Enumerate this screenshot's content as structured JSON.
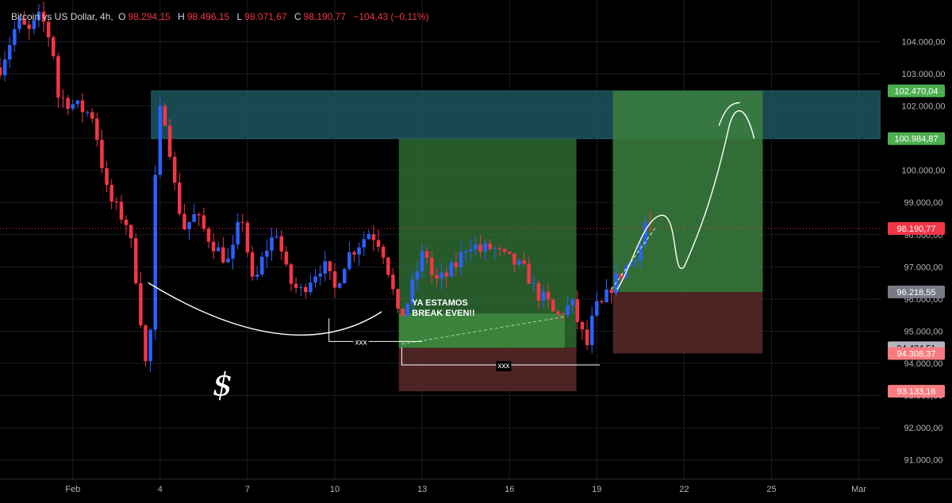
{
  "legend": {
    "symbol": "Bitcoin vs US Dollar, 4h,",
    "o_label": "O",
    "o_value": "98.294,15",
    "h_label": "H",
    "h_value": "98.496,15",
    "l_label": "L",
    "l_value": "98.071,67",
    "c_label": "C",
    "c_value": "98.190,77",
    "change": "−104,43 (−0,11%)"
  },
  "annotations": {
    "note_line1": "YA ESTAMOS",
    "note_line2": "BREAK EVEN!!",
    "xxx_left": "xxx",
    "xxx_right": "xxx",
    "dollar": "$"
  },
  "price_tags": [
    {
      "label": "102.470,04",
      "value": 102470.04,
      "color": "#4caf50"
    },
    {
      "label": "100.984,87",
      "value": 100984.87,
      "color": "#4caf50"
    },
    {
      "label": "98.190,77",
      "value": 98190.77,
      "color": "#f23645"
    },
    {
      "label": "96.218,55",
      "value": 96218.55,
      "color": "#787b86"
    },
    {
      "label": "94.484,51",
      "value": 94484.51,
      "color": "#b2b5be"
    },
    {
      "label": "94.308,37",
      "value": 94308.37,
      "color": "#f77c80"
    },
    {
      "label": "93.133,16",
      "value": 93133.16,
      "color": "#f77c80"
    }
  ],
  "chart_data": {
    "type": "candlestick",
    "title": "Bitcoin vs US Dollar, 4h",
    "ylim": [
      90400,
      104800
    ],
    "y_ticks": [
      {
        "value": 91000,
        "label": "91.000,00"
      },
      {
        "value": 92000,
        "label": "92.000,00"
      },
      {
        "value": 93000,
        "label": "93.000,00"
      },
      {
        "value": 94000,
        "label": "94.000,00"
      },
      {
        "value": 95000,
        "label": "95.000,00"
      },
      {
        "value": 96000,
        "label": "96.000,00"
      },
      {
        "value": 97000,
        "label": "97.000,00"
      },
      {
        "value": 98000,
        "label": "98.000,00"
      },
      {
        "value": 99000,
        "label": "99.000,00"
      },
      {
        "value": 100000,
        "label": "100.000,00"
      },
      {
        "value": 101000,
        "label": "101.000,00"
      },
      {
        "value": 102000,
        "label": "102.000,00"
      },
      {
        "value": 103000,
        "label": "103.000,00"
      },
      {
        "value": 104000,
        "label": "104.000,00"
      }
    ],
    "x_ticks": [
      {
        "day": 0,
        "label": "Feb"
      },
      {
        "day": 3,
        "label": "4"
      },
      {
        "day": 6,
        "label": "7"
      },
      {
        "day": 9,
        "label": "10"
      },
      {
        "day": 12,
        "label": "13"
      },
      {
        "day": 15,
        "label": "16"
      },
      {
        "day": 18,
        "label": "19"
      },
      {
        "day": 21,
        "label": "22"
      },
      {
        "day": 24,
        "label": "25"
      },
      {
        "day": 27,
        "label": "Mar"
      }
    ],
    "x_range_days": [
      -2.5,
      30.2
    ],
    "last_price": 98190.77,
    "colors": {
      "up": "#2962ff",
      "down": "#f23645"
    },
    "grid": true,
    "zones": [
      {
        "name": "supply",
        "d0": 2.7,
        "d1": 33.0,
        "top": 102470,
        "bottom": 100984.87,
        "color": "#1e5560"
      },
      {
        "name": "long1-profit",
        "d0": 11.2,
        "d1": 17.3,
        "top": 100984.87,
        "bottom": 94484.51,
        "color": "#2e6a33"
      },
      {
        "name": "long1-loss",
        "d0": 11.2,
        "d1": 17.3,
        "top": 94484.51,
        "bottom": 93133.16,
        "color": "#5a2a2a"
      },
      {
        "name": "long2-profit",
        "d0": 18.55,
        "d1": 23.7,
        "top": 102470.04,
        "bottom": 96218.55,
        "color": "#3c8040"
      },
      {
        "name": "long2-loss",
        "d0": 18.55,
        "d1": 23.7,
        "top": 96218.55,
        "bottom": 94308.37,
        "color": "#5a2a2a"
      },
      {
        "name": "break-even",
        "d0": 11.2,
        "d1": 16.9,
        "top": 95550,
        "bottom": 94484.51,
        "color": "#3f8a3f"
      }
    ],
    "anchors": [
      [
        -2.5,
        103200
      ],
      [
        -2.2,
        103900
      ],
      [
        -1.9,
        104600
      ],
      [
        -1.5,
        104300
      ],
      [
        -1.1,
        104800
      ],
      [
        -0.7,
        103900
      ],
      [
        -0.5,
        102300
      ],
      [
        -0.1,
        102100
      ],
      [
        0.3,
        101900
      ],
      [
        0.7,
        101700
      ],
      [
        0.9,
        100700
      ],
      [
        1.2,
        99200
      ],
      [
        1.5,
        98800
      ],
      [
        1.9,
        98300
      ],
      [
        2.2,
        96500
      ],
      [
        2.5,
        94000
      ],
      [
        2.7,
        95200
      ],
      [
        2.9,
        101900
      ],
      [
        3.2,
        101600
      ],
      [
        3.5,
        99500
      ],
      [
        3.8,
        98200
      ],
      [
        4.2,
        98600
      ],
      [
        4.6,
        98000
      ],
      [
        5.0,
        97500
      ],
      [
        5.4,
        97100
      ],
      [
        5.8,
        98700
      ],
      [
        6.2,
        96300
      ],
      [
        6.6,
        97500
      ],
      [
        7.0,
        98100
      ],
      [
        7.4,
        96600
      ],
      [
        7.8,
        96200
      ],
      [
        8.2,
        96700
      ],
      [
        8.6,
        97100
      ],
      [
        9.0,
        96300
      ],
      [
        9.4,
        97300
      ],
      [
        9.8,
        97700
      ],
      [
        10.2,
        98100
      ],
      [
        10.6,
        97700
      ],
      [
        10.9,
        96700
      ],
      [
        11.2,
        95300
      ],
      [
        11.5,
        95900
      ],
      [
        11.8,
        96800
      ],
      [
        12.1,
        97600
      ],
      [
        12.4,
        96500
      ],
      [
        12.8,
        96700
      ],
      [
        13.2,
        97100
      ],
      [
        13.6,
        97800
      ],
      [
        14.0,
        97500
      ],
      [
        14.4,
        97600
      ],
      [
        14.8,
        97300
      ],
      [
        15.2,
        97100
      ],
      [
        15.6,
        96800
      ],
      [
        15.9,
        96200
      ],
      [
        16.3,
        95900
      ],
      [
        16.6,
        95400
      ],
      [
        16.9,
        95700
      ],
      [
        17.2,
        95800
      ],
      [
        17.4,
        95100
      ],
      [
        17.7,
        94500
      ],
      [
        17.9,
        95700
      ],
      [
        18.2,
        95800
      ],
      [
        18.5,
        96400
      ],
      [
        18.9,
        96900
      ],
      [
        19.2,
        97200
      ],
      [
        19.5,
        97700
      ],
      [
        19.7,
        98500
      ],
      [
        19.9,
        98190
      ]
    ]
  }
}
